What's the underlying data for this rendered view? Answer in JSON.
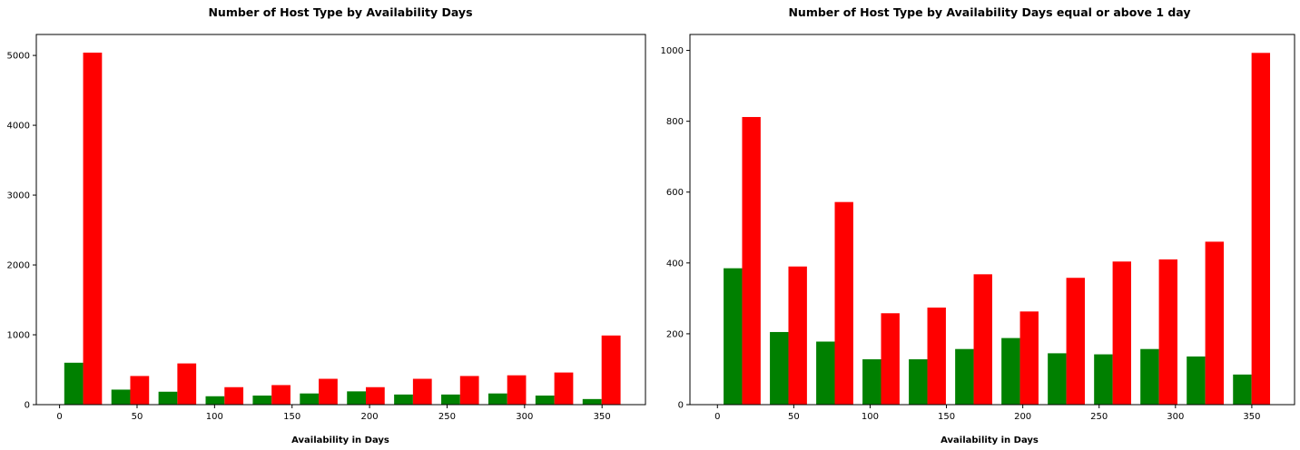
{
  "chart_data": [
    {
      "type": "bar",
      "title": "Number of Host Type by Availability Days",
      "xlabel": "Availability in Days",
      "ylabel": "",
      "xlim": [
        -15,
        378
      ],
      "ylim": [
        0,
        5300
      ],
      "xticks": [
        0,
        50,
        100,
        150,
        200,
        250,
        300,
        350
      ],
      "yticks": [
        0,
        1000,
        2000,
        3000,
        4000,
        5000
      ],
      "bin_edges": [
        0,
        30.4,
        60.8,
        91.2,
        121.6,
        152,
        182.4,
        212.8,
        243.2,
        273.6,
        304,
        334.4,
        365
      ],
      "grid": false,
      "series": [
        {
          "color": "#008000",
          "values": [
            600,
            215,
            185,
            120,
            130,
            160,
            190,
            145,
            145,
            160,
            130,
            80
          ]
        },
        {
          "color": "#ff0000",
          "values": [
            5040,
            410,
            590,
            250,
            280,
            370,
            250,
            370,
            410,
            420,
            460,
            990
          ]
        }
      ]
    },
    {
      "type": "bar",
      "title": "Number of Host Type by Availability Days equal or above 1 day",
      "xlabel": "Availability in Days",
      "ylabel": "",
      "xlim": [
        -18,
        378
      ],
      "ylim": [
        0,
        1045
      ],
      "xticks": [
        0,
        50,
        100,
        150,
        200,
        250,
        300,
        350
      ],
      "yticks": [
        0,
        200,
        400,
        600,
        800,
        1000
      ],
      "bin_edges": [
        1,
        31.33,
        61.67,
        92,
        122.33,
        152.67,
        183,
        213.33,
        243.67,
        274,
        304.33,
        334.67,
        365
      ],
      "grid": false,
      "series": [
        {
          "color": "#008000",
          "values": [
            385,
            205,
            178,
            128,
            128,
            157,
            188,
            145,
            142,
            157,
            136,
            85
          ]
        },
        {
          "color": "#ff0000",
          "values": [
            812,
            390,
            572,
            258,
            274,
            368,
            263,
            358,
            404,
            410,
            460,
            993
          ]
        }
      ]
    }
  ]
}
